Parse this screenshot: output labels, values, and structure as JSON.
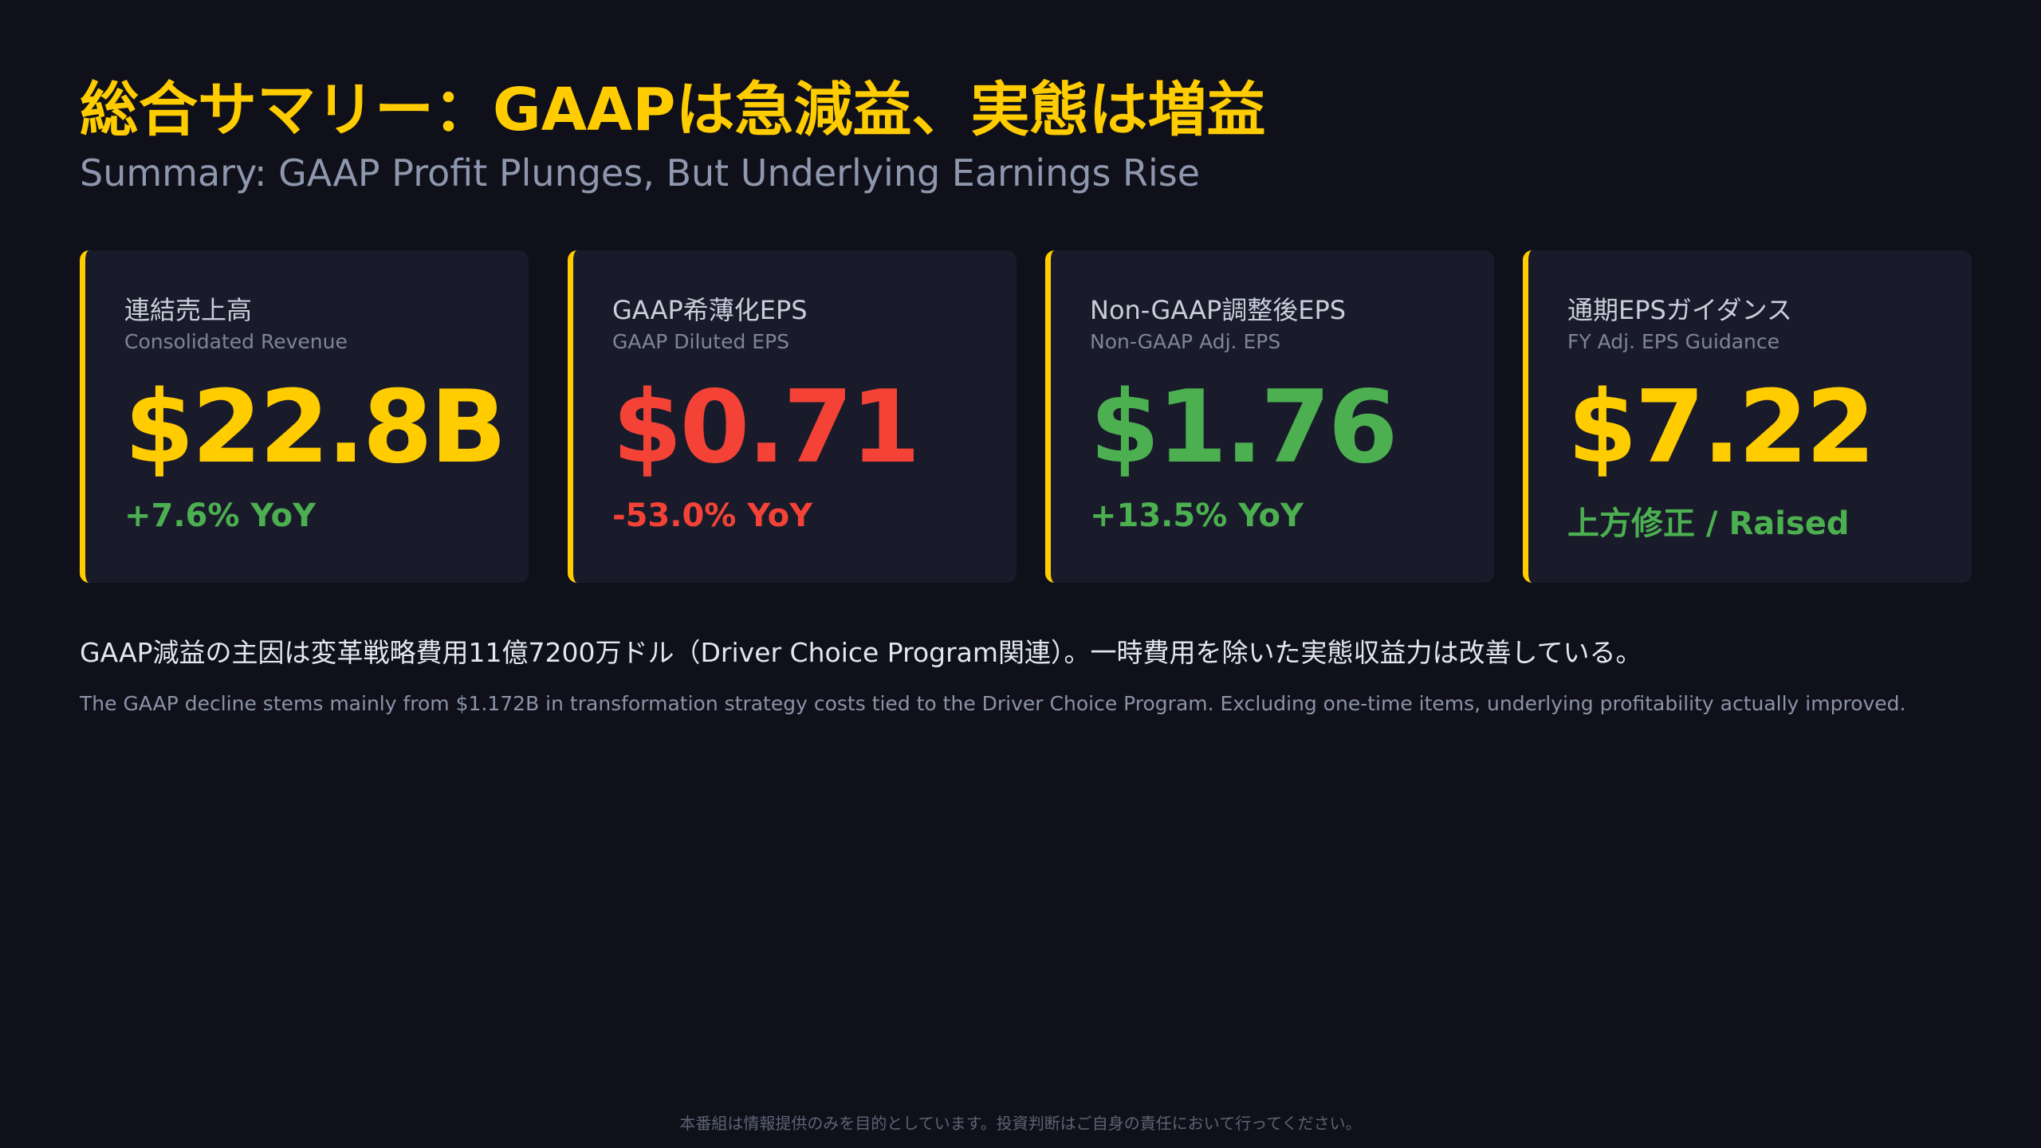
{
  "header": {
    "title": "総合サマリー：GAAPは急減益、実態は増益",
    "subtitle": "Summary: GAAP Profit Plunges, But Underlying Earnings Rise"
  },
  "cards": [
    {
      "label_ja": "連結売上高",
      "label_en": "Consolidated Revenue",
      "value": "$22.8B",
      "change": "+7.6% YoY",
      "value_color": "#ffcc00",
      "change_color": "#4caf50"
    },
    {
      "label_ja": "GAAP希薄化EPS",
      "label_en": "GAAP Diluted EPS",
      "value": "$0.71",
      "change": "-53.0% YoY",
      "value_color": "#f44336",
      "change_color": "#f44336"
    },
    {
      "label_ja": "Non-GAAP調整後EPS",
      "label_en": "Non-GAAP Adj. EPS",
      "value": "$1.76",
      "change": "+13.5% YoY",
      "value_color": "#4caf50",
      "change_color": "#4caf50"
    },
    {
      "label_ja": "通期EPSガイダンス",
      "label_en": "FY Adj. EPS Guidance",
      "value": "$7.22",
      "change": "上方修正 / Raised",
      "value_color": "#ffcc00",
      "change_color": "#4caf50"
    }
  ],
  "notes": {
    "ja": "GAAP減益の主因は変革戦略費用11億7200万ドル（Driver Choice Program関連）。一時費用を除いた実態収益力は改善している。",
    "en": "The GAAP decline stems mainly from $1.172B in transformation strategy costs tied to the Driver Choice Program. Excluding one-time items, underlying profitability actually improved."
  },
  "footer": {
    "disclaimer": "本番組は情報提供のみを目的としています。投資判断はご自身の責任において行ってください。"
  },
  "colors": {
    "accent": "#ffcc00",
    "positive": "#4caf50",
    "negative": "#f44336",
    "background": "#0f101a",
    "card_background": "#191b2b"
  }
}
